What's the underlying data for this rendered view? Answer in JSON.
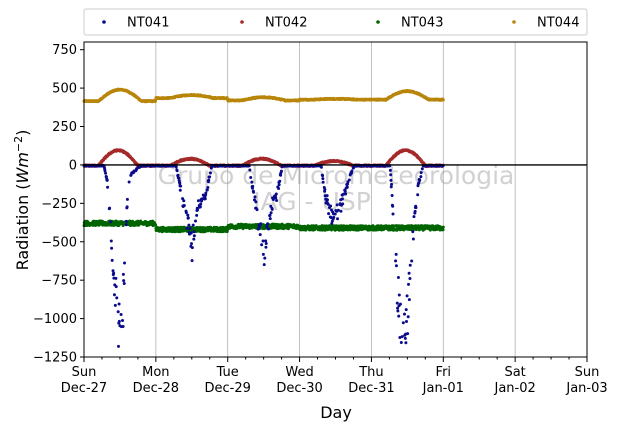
{
  "chart_data": {
    "type": "scatter",
    "title": "",
    "xlabel": "Day",
    "ylabel": "Radiation (Wm⁻²)",
    "ylabel_main": "Radiation (",
    "ylabel_unit": "Wm",
    "ylabel_exp": "−2",
    "ylabel_close": ")",
    "ylim": [
      -1250,
      800
    ],
    "yticks": [
      -1250,
      -1000,
      -750,
      -500,
      -250,
      0,
      250,
      500,
      750
    ],
    "ytick_labels": [
      "−1250",
      "−1000",
      "−750",
      "−500",
      "−250",
      "0",
      "250",
      "500",
      "750"
    ],
    "xlim": [
      "Dec-27",
      "Jan-03"
    ],
    "xticks": [
      {
        "day": "Sun",
        "date": "Dec-27"
      },
      {
        "day": "Mon",
        "date": "Dec-28"
      },
      {
        "day": "Tue",
        "date": "Dec-29"
      },
      {
        "day": "Wed",
        "date": "Dec-30"
      },
      {
        "day": "Thu",
        "date": "Dec-31"
      },
      {
        "day": "Fri",
        "date": "Jan-01"
      },
      {
        "day": "Sat",
        "date": "Jan-02"
      },
      {
        "day": "Sun",
        "date": "Jan-03"
      }
    ],
    "grid": "vertical",
    "zero_line": true,
    "legend_position": "top",
    "watermark_lines": [
      "Grupo de Micrometeorologia",
      "IAG - USP"
    ],
    "series": [
      {
        "name": "NT041",
        "color": "#0a0a8c",
        "profile": [
          {
            "day": 0,
            "baseline": -5,
            "peak_x": [
              0.6,
              0.5
            ],
            "trace": [
              [
                0.28,
                -5
              ],
              [
                0.32,
                -100
              ],
              [
                0.36,
                -300
              ],
              [
                0.4,
                -600
              ],
              [
                0.44,
                -800
              ],
              [
                0.48,
                -1050
              ],
              [
                0.5,
                -1150
              ],
              [
                0.53,
                -1080
              ],
              [
                0.56,
                -700
              ],
              [
                0.58,
                -400
              ],
              [
                0.62,
                -120
              ],
              [
                0.66,
                -60
              ],
              [
                0.7,
                -40
              ],
              [
                0.75,
                -20
              ],
              [
                0.8,
                -5
              ]
            ]
          },
          {
            "day": 1,
            "baseline": -5,
            "trace": [
              [
                0.28,
                -5
              ],
              [
                0.34,
                -150
              ],
              [
                0.4,
                -300
              ],
              [
                0.46,
                -420
              ],
              [
                0.5,
                -560
              ],
              [
                0.54,
                -380
              ],
              [
                0.58,
                -260
              ],
              [
                0.64,
                -220
              ],
              [
                0.7,
                -180
              ],
              [
                0.78,
                -5
              ]
            ]
          },
          {
            "day": 2,
            "baseline": -5,
            "trace": [
              [
                0.3,
                -5
              ],
              [
                0.36,
                -200
              ],
              [
                0.42,
                -350
              ],
              [
                0.48,
                -480
              ],
              [
                0.52,
                -600
              ],
              [
                0.56,
                -400
              ],
              [
                0.62,
                -250
              ],
              [
                0.68,
                -200
              ],
              [
                0.76,
                -5
              ]
            ]
          },
          {
            "day": 3,
            "baseline": -5,
            "trace": [
              [
                0.3,
                -5
              ],
              [
                0.36,
                -200
              ],
              [
                0.42,
                -300
              ],
              [
                0.46,
                -360
              ],
              [
                0.5,
                -330
              ],
              [
                0.56,
                -280
              ],
              [
                0.62,
                -200
              ],
              [
                0.68,
                -100
              ],
              [
                0.76,
                -5
              ]
            ]
          },
          {
            "day": 4,
            "baseline": -5,
            "trace": [
              [
                0.26,
                -5
              ],
              [
                0.3,
                -300
              ],
              [
                0.34,
                -650
              ],
              [
                0.38,
                -900
              ],
              [
                0.42,
                -1050
              ],
              [
                0.46,
                -1100
              ],
              [
                0.5,
                -1000
              ],
              [
                0.54,
                -700
              ],
              [
                0.58,
                -450
              ],
              [
                0.62,
                -250
              ],
              [
                0.66,
                -120
              ],
              [
                0.72,
                -5
              ]
            ]
          }
        ]
      },
      {
        "name": "NT042",
        "color": "#a52a2a",
        "daily_peaks": [
          100,
          45,
          45,
          30,
          100
        ],
        "baseline": -5
      },
      {
        "name": "NT043",
        "color": "#006400",
        "daily_levels": [
          -380,
          -420,
          -400,
          -410,
          -410
        ],
        "noise": 15
      },
      {
        "name": "NT044",
        "color": "#b8860b",
        "daily_levels": [
          415,
          435,
          420,
          425,
          425
        ],
        "daily_peaks": [
          490,
          455,
          440,
          430,
          480
        ]
      }
    ],
    "x_end_day": 5.0
  }
}
